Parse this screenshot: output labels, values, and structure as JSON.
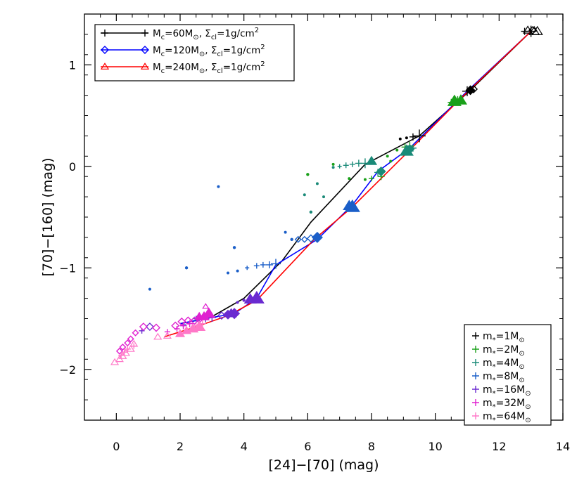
{
  "chart_data": {
    "type": "scatter",
    "xlabel": "[24]−[70] (mag)",
    "ylabel": "[70]−[160] (mag)",
    "xlim": [
      -1,
      14
    ],
    "ylim": [
      -2.5,
      1.5
    ],
    "xticks": [
      0,
      2,
      4,
      6,
      8,
      10,
      12,
      14
    ],
    "xtick_labels": [
      "0",
      "2",
      "4",
      "6",
      "8",
      "10",
      "12",
      "14"
    ],
    "yticks": [
      -2,
      -1,
      0,
      1
    ],
    "ytick_labels": [
      "−2",
      "−1",
      "0",
      "1"
    ],
    "grid": false,
    "colors": {
      "60": "#000000",
      "120": "#0000ff",
      "240": "#ff0000",
      "m1": "#000000",
      "m2": "#1aa01a",
      "m4": "#1a8a78",
      "m8": "#1a5ec8",
      "m16": "#6a2ad0",
      "m32": "#e020d0",
      "m64": "#ff78c8"
    },
    "legend_top": {
      "position": "top-left",
      "entries": [
        {
          "label_main": "M",
          "label_sub": "c",
          "label_eq": "=60M",
          "label_sig": "⊙",
          "label_comma": ",  ",
          "label_sigma": "Σ",
          "label_sigma_sub": "cl",
          "label_tail": "=1g/cm",
          "label_sup": "2",
          "marker": "plus",
          "color": "#000000"
        },
        {
          "label_main": "M",
          "label_sub": "c",
          "label_eq": "=120M",
          "label_sig": "⊙",
          "label_comma": ",  ",
          "label_sigma": "Σ",
          "label_sigma_sub": "cl",
          "label_tail": "=1g/cm",
          "label_sup": "2",
          "marker": "diamond",
          "color": "#0000ff"
        },
        {
          "label_main": "M",
          "label_sub": "c",
          "label_eq": "=240M",
          "label_sig": "⊙",
          "label_comma": ",  ",
          "label_sigma": "Σ",
          "label_sigma_sub": "cl",
          "label_tail": "=1g/cm",
          "label_sup": "2",
          "marker": "triangle",
          "color": "#ff0000"
        }
      ]
    },
    "legend_bottom": {
      "position": "bottom-right",
      "entries": [
        {
          "label_main": "m",
          "label_sub": "*",
          "label_eq": "=1M",
          "label_sig": "⊙",
          "color": "#000000"
        },
        {
          "label_main": "m",
          "label_sub": "*",
          "label_eq": "=2M",
          "label_sig": "⊙",
          "color": "#1aa01a"
        },
        {
          "label_main": "m",
          "label_sub": "*",
          "label_eq": "=4M",
          "label_sig": "⊙",
          "color": "#1a8a78"
        },
        {
          "label_main": "m",
          "label_sub": "*",
          "label_eq": "=8M",
          "label_sig": "⊙",
          "color": "#1a5ec8"
        },
        {
          "label_main": "m",
          "label_sub": "*",
          "label_eq": "=16M",
          "label_sig": "⊙",
          "color": "#6a2ad0"
        },
        {
          "label_main": "m",
          "label_sub": "*",
          "label_eq": "=32M",
          "label_sig": "⊙",
          "color": "#e020d0"
        },
        {
          "label_main": "m",
          "label_sub": "*",
          "label_eq": "=64M",
          "label_sig": "⊙",
          "color": "#ff78c8"
        }
      ]
    },
    "tracks": [
      {
        "name": "60",
        "color": "#000000",
        "points": [
          [
            13.0,
            1.33
          ],
          [
            11.1,
            0.75
          ],
          [
            9.5,
            0.3
          ],
          [
            7.8,
            0.02
          ],
          [
            6.1,
            -0.55
          ],
          [
            5.2,
            -0.93
          ],
          [
            4.0,
            -1.3
          ],
          [
            3.0,
            -1.48
          ],
          [
            2.8,
            -1.5
          ],
          [
            2.0,
            -1.55
          ]
        ]
      },
      {
        "name": "120",
        "color": "#0000ff",
        "points": [
          [
            13.0,
            1.33
          ],
          [
            11.0,
            0.74
          ],
          [
            9.2,
            0.18
          ],
          [
            8.2,
            -0.05
          ],
          [
            7.4,
            -0.38
          ],
          [
            6.3,
            -0.72
          ],
          [
            5.0,
            -0.97
          ],
          [
            4.4,
            -1.3
          ],
          [
            3.7,
            -1.45
          ],
          [
            2.8,
            -1.5
          ],
          [
            2.0,
            -1.55
          ]
        ]
      },
      {
        "name": "240",
        "color": "#ff0000",
        "points": [
          [
            13.0,
            1.33
          ],
          [
            10.7,
            0.64
          ],
          [
            9.2,
            0.16
          ],
          [
            7.4,
            -0.4
          ],
          [
            6.2,
            -0.72
          ],
          [
            4.4,
            -1.32
          ],
          [
            3.5,
            -1.47
          ],
          [
            2.5,
            -1.58
          ],
          [
            1.5,
            -1.68
          ]
        ]
      }
    ],
    "series": [
      {
        "name": "m1",
        "color": "#000000",
        "markers": [
          {
            "x": 13.0,
            "y": 1.33,
            "m": "plus",
            "s": 8
          },
          {
            "x": 12.8,
            "y": 1.33,
            "m": "plus",
            "s": 5
          },
          {
            "x": 13.1,
            "y": 1.33,
            "m": "tri",
            "s": 7
          },
          {
            "x": 13.2,
            "y": 1.33,
            "m": "tri",
            "s": 7
          },
          {
            "x": 12.9,
            "y": 1.34,
            "m": "tri",
            "s": 6
          },
          {
            "x": 13.05,
            "y": 1.34,
            "m": "diamond",
            "s": 5
          },
          {
            "x": 11.0,
            "y": 0.74,
            "m": "plus",
            "s": 7
          },
          {
            "x": 11.1,
            "y": 0.75,
            "m": "diamond",
            "s": 6
          },
          {
            "x": 11.2,
            "y": 0.76,
            "m": "diamond",
            "s": 5
          },
          {
            "x": 9.5,
            "y": 0.3,
            "m": "plus",
            "s": 9
          },
          {
            "x": 9.3,
            "y": 0.29,
            "m": "plus",
            "s": 5
          },
          {
            "x": 9.1,
            "y": 0.28,
            "m": "dot",
            "s": 2
          },
          {
            "x": 8.9,
            "y": 0.27,
            "m": "dot",
            "s": 2
          }
        ]
      },
      {
        "name": "m2",
        "color": "#1aa01a",
        "markers": [
          {
            "x": 10.6,
            "y": 0.64,
            "m": "tri",
            "s": 9
          },
          {
            "x": 10.8,
            "y": 0.65,
            "m": "tri",
            "s": 8
          },
          {
            "x": 10.7,
            "y": 0.65,
            "m": "plus",
            "s": 6
          },
          {
            "x": 10.5,
            "y": 0.63,
            "m": "plus",
            "s": 5
          },
          {
            "x": 9.2,
            "y": 0.2,
            "m": "plus",
            "s": 6
          },
          {
            "x": 9.05,
            "y": 0.19,
            "m": "plus",
            "s": 5
          },
          {
            "x": 8.8,
            "y": 0.16,
            "m": "dot",
            "s": 2
          },
          {
            "x": 8.6,
            "y": 0.05,
            "m": "dot",
            "s": 2
          },
          {
            "x": 8.3,
            "y": -0.1,
            "m": "plus",
            "s": 5
          },
          {
            "x": 8.0,
            "y": -0.12,
            "m": "plus",
            "s": 4
          },
          {
            "x": 7.8,
            "y": -0.13,
            "m": "dot",
            "s": 2
          },
          {
            "x": 7.3,
            "y": -0.12,
            "m": "dot",
            "s": 2
          },
          {
            "x": 6.8,
            "y": 0.02,
            "m": "dot",
            "s": 2
          },
          {
            "x": 6.0,
            "y": -0.08,
            "m": "dot",
            "s": 2.2
          },
          {
            "x": 8.5,
            "y": 0.1,
            "m": "dot",
            "s": 2
          }
        ]
      },
      {
        "name": "m4",
        "color": "#1a8a78",
        "markers": [
          {
            "x": 7.8,
            "y": 0.03,
            "m": "plus",
            "s": 7
          },
          {
            "x": 8.0,
            "y": 0.05,
            "m": "tri",
            "s": 7
          },
          {
            "x": 7.6,
            "y": 0.03,
            "m": "plus",
            "s": 5
          },
          {
            "x": 7.4,
            "y": 0.02,
            "m": "plus",
            "s": 4
          },
          {
            "x": 7.2,
            "y": 0.01,
            "m": "plus",
            "s": 4
          },
          {
            "x": 7.0,
            "y": 0.0,
            "m": "plus",
            "s": 3
          },
          {
            "x": 6.8,
            "y": -0.01,
            "m": "dot",
            "s": 2
          },
          {
            "x": 8.3,
            "y": -0.05,
            "m": "diamond",
            "s": 6
          },
          {
            "x": 8.2,
            "y": -0.06,
            "m": "plus",
            "s": 5
          },
          {
            "x": 9.1,
            "y": 0.15,
            "m": "tri",
            "s": 9
          },
          {
            "x": 9.2,
            "y": 0.17,
            "m": "diamond",
            "s": 6
          },
          {
            "x": 9.3,
            "y": 0.18,
            "m": "plus",
            "s": 5
          },
          {
            "x": 6.3,
            "y": -0.17,
            "m": "dot",
            "s": 2
          },
          {
            "x": 5.9,
            "y": -0.28,
            "m": "dot",
            "s": 2
          },
          {
            "x": 6.5,
            "y": -0.3,
            "m": "dot",
            "s": 2
          },
          {
            "x": 6.1,
            "y": -0.45,
            "m": "dot",
            "s": 2.2
          }
        ]
      },
      {
        "name": "m8",
        "color": "#1a5ec8",
        "markers": [
          {
            "x": 7.4,
            "y": -0.4,
            "m": "tri",
            "s": 10
          },
          {
            "x": 7.3,
            "y": -0.39,
            "m": "tri",
            "s": 8
          },
          {
            "x": 6.3,
            "y": -0.7,
            "m": "diamond",
            "s": 7
          },
          {
            "x": 6.1,
            "y": -0.71,
            "m": "diamond",
            "s": 5
          },
          {
            "x": 5.9,
            "y": -0.72,
            "m": "diamond",
            "s": 4
          },
          {
            "x": 5.7,
            "y": -0.72,
            "m": "diamond",
            "s": 4
          },
          {
            "x": 5.5,
            "y": -0.72,
            "m": "dot",
            "s": 2.2
          },
          {
            "x": 5.0,
            "y": -0.96,
            "m": "plus",
            "s": 7
          },
          {
            "x": 4.8,
            "y": -0.97,
            "m": "plus",
            "s": 5
          },
          {
            "x": 4.6,
            "y": -0.97,
            "m": "plus",
            "s": 4
          },
          {
            "x": 4.4,
            "y": -0.98,
            "m": "plus",
            "s": 4
          },
          {
            "x": 4.1,
            "y": -1.0,
            "m": "plus",
            "s": 3
          },
          {
            "x": 3.8,
            "y": -1.03,
            "m": "dot",
            "s": 2
          },
          {
            "x": 3.5,
            "y": -1.05,
            "m": "dot",
            "s": 2
          },
          {
            "x": 3.7,
            "y": -0.8,
            "m": "dot",
            "s": 2.2
          },
          {
            "x": 5.3,
            "y": -0.65,
            "m": "dot",
            "s": 2
          },
          {
            "x": 3.2,
            "y": -0.2,
            "m": "dot",
            "s": 2
          },
          {
            "x": 2.2,
            "y": -1.0,
            "m": "dot",
            "s": 2.2
          },
          {
            "x": 1.05,
            "y": -1.21,
            "m": "dot",
            "s": 2
          },
          {
            "x": 2.5,
            "y": -1.5,
            "m": "plus",
            "s": 4
          },
          {
            "x": 2.1,
            "y": -1.56,
            "m": "plus",
            "s": 4
          }
        ]
      },
      {
        "name": "m16",
        "color": "#6a2ad0",
        "markers": [
          {
            "x": 4.4,
            "y": -1.3,
            "m": "tri",
            "s": 10
          },
          {
            "x": 4.2,
            "y": -1.31,
            "m": "tri",
            "s": 8
          },
          {
            "x": 4.0,
            "y": -1.32,
            "m": "dot",
            "s": 2.2
          },
          {
            "x": 3.8,
            "y": -1.34,
            "m": "dot",
            "s": 2
          },
          {
            "x": 3.7,
            "y": -1.45,
            "m": "diamond",
            "s": 7
          },
          {
            "x": 3.5,
            "y": -1.46,
            "m": "diamond",
            "s": 6
          },
          {
            "x": 3.3,
            "y": -1.47,
            "m": "diamond",
            "s": 5
          },
          {
            "x": 3.0,
            "y": -1.49,
            "m": "plus",
            "s": 6
          },
          {
            "x": 2.8,
            "y": -1.5,
            "m": "plus",
            "s": 5
          },
          {
            "x": 2.6,
            "y": -1.51,
            "m": "plus",
            "s": 4
          },
          {
            "x": 3.6,
            "y": -1.45,
            "m": "tri",
            "s": 7
          },
          {
            "x": 1.05,
            "y": -1.58,
            "m": "diamond",
            "s": 5
          },
          {
            "x": 0.8,
            "y": -1.62,
            "m": "plus",
            "s": 4
          }
        ]
      },
      {
        "name": "m32",
        "color": "#e020d0",
        "markers": [
          {
            "x": 2.9,
            "y": -1.45,
            "m": "tri",
            "s": 8
          },
          {
            "x": 2.75,
            "y": -1.48,
            "m": "tri",
            "s": 7
          },
          {
            "x": 2.6,
            "y": -1.48,
            "m": "tri",
            "s": 6
          },
          {
            "x": 2.8,
            "y": -1.38,
            "m": "tri",
            "s": 4
          },
          {
            "x": 2.6,
            "y": -1.5,
            "m": "diamond",
            "s": 6
          },
          {
            "x": 2.45,
            "y": -1.52,
            "m": "diamond",
            "s": 5
          },
          {
            "x": 2.25,
            "y": -1.52,
            "m": "diamond",
            "s": 5
          },
          {
            "x": 2.05,
            "y": -1.53,
            "m": "diamond",
            "s": 5
          },
          {
            "x": 1.85,
            "y": -1.57,
            "m": "diamond",
            "s": 5
          },
          {
            "x": 1.25,
            "y": -1.59,
            "m": "diamond",
            "s": 5
          },
          {
            "x": 0.85,
            "y": -1.58,
            "m": "diamond",
            "s": 5
          },
          {
            "x": 0.6,
            "y": -1.64,
            "m": "diamond",
            "s": 4
          },
          {
            "x": 0.45,
            "y": -1.7,
            "m": "diamond",
            "s": 4
          },
          {
            "x": 0.35,
            "y": -1.74,
            "m": "diamond",
            "s": 4
          },
          {
            "x": 0.2,
            "y": -1.78,
            "m": "diamond",
            "s": 4
          },
          {
            "x": 0.1,
            "y": -1.82,
            "m": "diamond",
            "s": 4
          },
          {
            "x": 2.3,
            "y": -1.55,
            "m": "plus",
            "s": 5
          },
          {
            "x": 2.1,
            "y": -1.57,
            "m": "plus",
            "s": 5
          },
          {
            "x": 1.9,
            "y": -1.6,
            "m": "plus",
            "s": 4
          },
          {
            "x": 1.6,
            "y": -1.63,
            "m": "plus",
            "s": 4
          }
        ]
      },
      {
        "name": "m64",
        "color": "#ff78c8",
        "markers": [
          {
            "x": 2.6,
            "y": -1.58,
            "m": "tri",
            "s": 8
          },
          {
            "x": 2.4,
            "y": -1.6,
            "m": "tri",
            "s": 7
          },
          {
            "x": 2.2,
            "y": -1.62,
            "m": "tri",
            "s": 6
          },
          {
            "x": 2.0,
            "y": -1.65,
            "m": "tri",
            "s": 6
          },
          {
            "x": 1.6,
            "y": -1.67,
            "m": "tri",
            "s": 5
          },
          {
            "x": 1.3,
            "y": -1.68,
            "m": "tri",
            "s": 5
          },
          {
            "x": 0.55,
            "y": -1.75,
            "m": "tri",
            "s": 5
          },
          {
            "x": 0.45,
            "y": -1.8,
            "m": "tri",
            "s": 5
          },
          {
            "x": 0.3,
            "y": -1.84,
            "m": "tri",
            "s": 5
          },
          {
            "x": 0.2,
            "y": -1.87,
            "m": "tri",
            "s": 5
          },
          {
            "x": 0.1,
            "y": -1.9,
            "m": "tri",
            "s": 5
          },
          {
            "x": -0.05,
            "y": -1.93,
            "m": "tri",
            "s": 5
          },
          {
            "x": 0.35,
            "y": -1.8,
            "m": "plus",
            "s": 5
          },
          {
            "x": 0.25,
            "y": -1.83,
            "m": "plus",
            "s": 4
          },
          {
            "x": 0.15,
            "y": -1.86,
            "m": "plus",
            "s": 4
          },
          {
            "x": 0.55,
            "y": -1.77,
            "m": "plus",
            "s": 4
          },
          {
            "x": 2.7,
            "y": -1.55,
            "m": "plus",
            "s": 5
          },
          {
            "x": 2.5,
            "y": -1.57,
            "m": "plus",
            "s": 4
          }
        ]
      }
    ]
  }
}
